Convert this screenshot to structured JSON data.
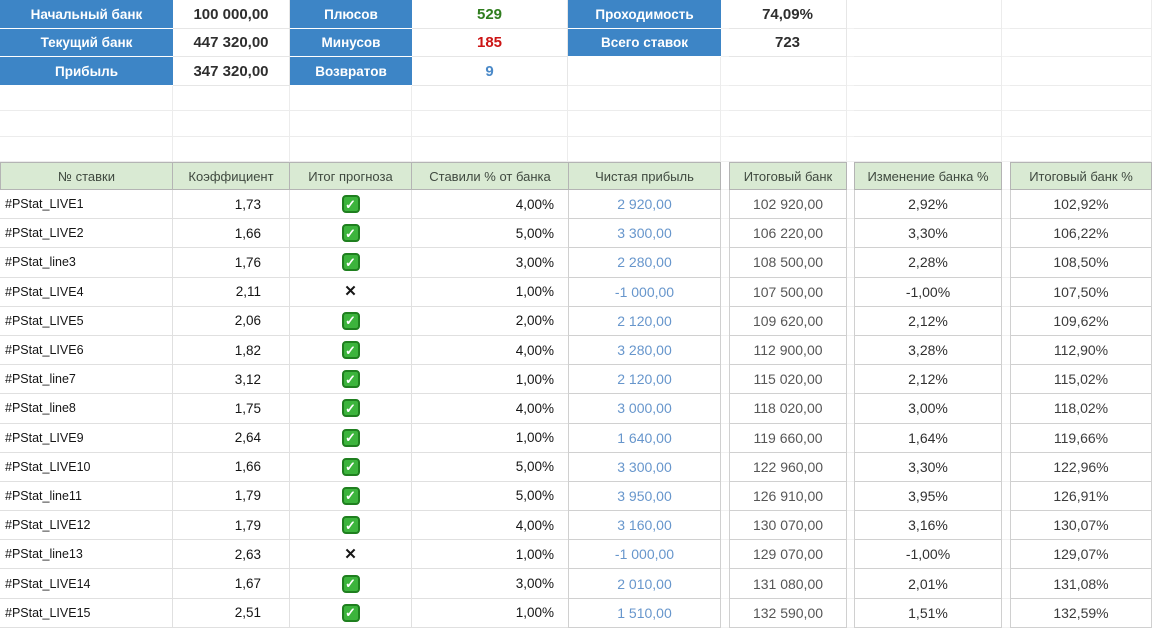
{
  "summary": {
    "bank": [
      {
        "label": "Начальный банк",
        "value": "100 000,00"
      },
      {
        "label": "Текущий банк",
        "value": "447 320,00"
      },
      {
        "label": "Прибыль",
        "value": "347 320,00"
      }
    ],
    "counters": [
      {
        "label": "Плюсов",
        "value": "529"
      },
      {
        "label": "Минусов",
        "value": "185"
      },
      {
        "label": "Возвратов",
        "value": "9"
      }
    ],
    "stats": [
      {
        "label": "Проходимость",
        "value": "74,09%"
      },
      {
        "label": "Всего ставок",
        "value": "723"
      }
    ]
  },
  "table": {
    "headers": [
      "№ ставки",
      "Коэффициент",
      "Итог прогноза",
      "Ставили % от банка",
      "Чистая прибыль",
      "Итоговый банк",
      "Изменение банка %",
      "Итоговый банк %"
    ],
    "rows": [
      {
        "bet": "#PStat_LIVE1",
        "coef": "1,73",
        "result": "win",
        "stake": "4,00%",
        "profit": "2 920,00",
        "bank": "102 920,00",
        "change": "2,92%",
        "bank_pct": "102,92%"
      },
      {
        "bet": "#PStat_LIVE2",
        "coef": "1,66",
        "result": "win",
        "stake": "5,00%",
        "profit": "3 300,00",
        "bank": "106 220,00",
        "change": "3,30%",
        "bank_pct": "106,22%"
      },
      {
        "bet": "#PStat_line3",
        "coef": "1,76",
        "result": "win",
        "stake": "3,00%",
        "profit": "2 280,00",
        "bank": "108 500,00",
        "change": "2,28%",
        "bank_pct": "108,50%"
      },
      {
        "bet": "#PStat_LIVE4",
        "coef": "2,11",
        "result": "loss",
        "stake": "1,00%",
        "profit": "-1 000,00",
        "bank": "107 500,00",
        "change": "-1,00%",
        "bank_pct": "107,50%"
      },
      {
        "bet": "#PStat_LIVE5",
        "coef": "2,06",
        "result": "win",
        "stake": "2,00%",
        "profit": "2 120,00",
        "bank": "109 620,00",
        "change": "2,12%",
        "bank_pct": "109,62%"
      },
      {
        "bet": "#PStat_LIVE6",
        "coef": "1,82",
        "result": "win",
        "stake": "4,00%",
        "profit": "3 280,00",
        "bank": "112 900,00",
        "change": "3,28%",
        "bank_pct": "112,90%"
      },
      {
        "bet": "#PStat_line7",
        "coef": "3,12",
        "result": "win",
        "stake": "1,00%",
        "profit": "2 120,00",
        "bank": "115 020,00",
        "change": "2,12%",
        "bank_pct": "115,02%"
      },
      {
        "bet": "#PStat_line8",
        "coef": "1,75",
        "result": "win",
        "stake": "4,00%",
        "profit": "3 000,00",
        "bank": "118 020,00",
        "change": "3,00%",
        "bank_pct": "118,02%"
      },
      {
        "bet": "#PStat_LIVE9",
        "coef": "2,64",
        "result": "win",
        "stake": "1,00%",
        "profit": "1 640,00",
        "bank": "119 660,00",
        "change": "1,64%",
        "bank_pct": "119,66%"
      },
      {
        "bet": "#PStat_LIVE10",
        "coef": "1,66",
        "result": "win",
        "stake": "5,00%",
        "profit": "3 300,00",
        "bank": "122 960,00",
        "change": "3,30%",
        "bank_pct": "122,96%"
      },
      {
        "bet": "#PStat_line11",
        "coef": "1,79",
        "result": "win",
        "stake": "5,00%",
        "profit": "3 950,00",
        "bank": "126 910,00",
        "change": "3,95%",
        "bank_pct": "126,91%"
      },
      {
        "bet": "#PStat_LIVE12",
        "coef": "1,79",
        "result": "win",
        "stake": "4,00%",
        "profit": "3 160,00",
        "bank": "130 070,00",
        "change": "3,16%",
        "bank_pct": "130,07%"
      },
      {
        "bet": "#PStat_line13",
        "coef": "2,63",
        "result": "loss",
        "stake": "1,00%",
        "profit": "-1 000,00",
        "bank": "129 070,00",
        "change": "-1,00%",
        "bank_pct": "129,07%"
      },
      {
        "bet": "#PStat_LIVE14",
        "coef": "1,67",
        "result": "win",
        "stake": "3,00%",
        "profit": "2 010,00",
        "bank": "131 080,00",
        "change": "2,01%",
        "bank_pct": "131,08%"
      },
      {
        "bet": "#PStat_LIVE15",
        "coef": "2,51",
        "result": "win",
        "stake": "1,00%",
        "profit": "1 510,00",
        "bank": "132 590,00",
        "change": "1,51%",
        "bank_pct": "132,59%"
      }
    ]
  },
  "icons": {
    "win_check": "✓",
    "loss_cross": "✕"
  },
  "colors": {
    "accent_blue": "#3d85c6",
    "header_green_bg": "#d9ead3",
    "plus_green": "#2f7d1e",
    "minus_red": "#cc1414",
    "return_blue": "#4a89c8",
    "profit_blue": "#6796cc",
    "check_green": "#3cb43c",
    "check_border": "#1f7f1f"
  }
}
